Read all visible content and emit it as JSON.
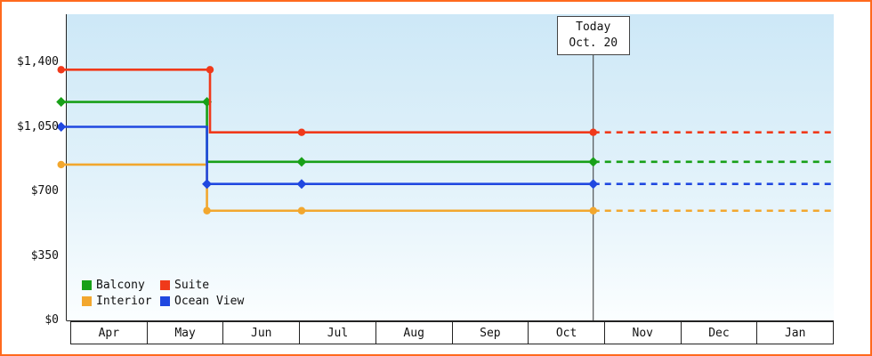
{
  "frame": {
    "border_color": "#ff6a1e"
  },
  "chart_data": {
    "type": "line",
    "title": "",
    "x_categories": [
      "Apr",
      "May",
      "Jun",
      "Jul",
      "Aug",
      "Sep",
      "Oct",
      "Nov",
      "Dec",
      "Jan"
    ],
    "y_ticks": [
      {
        "value": 0,
        "label": "$0"
      },
      {
        "value": 350,
        "label": "$350"
      },
      {
        "value": 700,
        "label": "$700"
      },
      {
        "value": 1050,
        "label": "$1,050"
      },
      {
        "value": 1400,
        "label": "$1,400"
      }
    ],
    "ylim": [
      0,
      1400
    ],
    "grid": false,
    "legend_position": "bottom-left",
    "today": {
      "line1": "Today",
      "line2": "Oct. 20",
      "month_fraction": 6.85
    },
    "series": [
      {
        "name": "Balcony",
        "color": "#18a018",
        "marker": "diamond",
        "points_solid": [
          [
            -0.12,
            1185
          ],
          [
            1.79,
            1185
          ],
          [
            1.79,
            860
          ],
          [
            6.85,
            860
          ]
        ],
        "points_dashed": [
          [
            6.85,
            860
          ],
          [
            10,
            860
          ]
        ],
        "markers": [
          [
            -0.12,
            1185
          ],
          [
            1.79,
            1185
          ],
          [
            3.03,
            860
          ],
          [
            6.85,
            860
          ]
        ]
      },
      {
        "name": "Suite",
        "color": "#f0391a",
        "marker": "circle",
        "points_solid": [
          [
            -0.12,
            1360
          ],
          [
            1.83,
            1360
          ],
          [
            1.83,
            1020
          ],
          [
            6.85,
            1020
          ]
        ],
        "points_dashed": [
          [
            6.85,
            1020
          ],
          [
            10,
            1020
          ]
        ],
        "markers": [
          [
            -0.12,
            1360
          ],
          [
            1.83,
            1360
          ],
          [
            3.03,
            1020
          ],
          [
            6.85,
            1020
          ]
        ]
      },
      {
        "name": "Interior",
        "color": "#f2a72e",
        "marker": "circle",
        "points_solid": [
          [
            -0.12,
            845
          ],
          [
            1.79,
            845
          ],
          [
            1.79,
            595
          ],
          [
            6.85,
            595
          ]
        ],
        "points_dashed": [
          [
            6.85,
            595
          ],
          [
            10,
            595
          ]
        ],
        "markers": [
          [
            -0.12,
            845
          ],
          [
            1.79,
            595
          ],
          [
            3.03,
            595
          ],
          [
            6.85,
            595
          ]
        ]
      },
      {
        "name": "Ocean View",
        "color": "#2048e0",
        "marker": "diamond",
        "points_solid": [
          [
            -0.12,
            1050
          ],
          [
            1.79,
            1050
          ],
          [
            1.79,
            740
          ],
          [
            6.85,
            740
          ]
        ],
        "points_dashed": [
          [
            6.85,
            740
          ],
          [
            10,
            740
          ]
        ],
        "markers": [
          [
            -0.12,
            1050
          ],
          [
            1.79,
            740
          ],
          [
            3.03,
            740
          ],
          [
            6.85,
            740
          ]
        ]
      }
    ]
  }
}
